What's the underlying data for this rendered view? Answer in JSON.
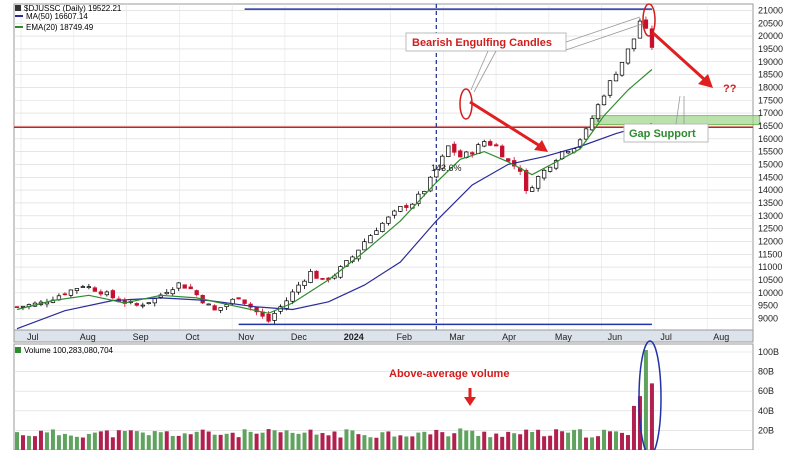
{
  "chart_data": [
    {
      "type": "candlestick",
      "symbol_label": "$DJUSSC (Daily) 19522.21",
      "legend": [
        {
          "text": "MA(50) 16607.14",
          "color": "#2b2b9a"
        },
        {
          "text": "EMA(20) 18749.49",
          "color": "#2e8b2e"
        }
      ],
      "x_labels": [
        "Jul",
        "Aug",
        "Sep",
        "Oct",
        "Nov",
        "Dec",
        "2024",
        "Feb",
        "Mar",
        "Apr",
        "May",
        "Jun",
        "Jul",
        "Aug"
      ],
      "y_ticks": [
        9000,
        9500,
        10000,
        10500,
        11000,
        11500,
        12000,
        12500,
        13000,
        13500,
        14000,
        14500,
        15000,
        15500,
        16000,
        16500,
        17000,
        17500,
        18000,
        18500,
        19000,
        19500,
        20000,
        20500,
        21000
      ],
      "ylim": [
        8550,
        21250
      ],
      "price_path": [
        [
          0,
          9450
        ],
        [
          4,
          9600
        ],
        [
          8,
          10000
        ],
        [
          11,
          10300
        ],
        [
          14,
          10050
        ],
        [
          17,
          9700
        ],
        [
          20,
          9500
        ],
        [
          23,
          9750
        ],
        [
          25,
          10100
        ],
        [
          27,
          10350
        ],
        [
          29,
          10150
        ],
        [
          31,
          9700
        ],
        [
          33,
          9300
        ],
        [
          35,
          9550
        ],
        [
          37,
          9850
        ],
        [
          39,
          9450
        ],
        [
          41,
          9050
        ],
        [
          42,
          8900
        ],
        [
          43,
          9200
        ],
        [
          45,
          9700
        ],
        [
          47,
          10300
        ],
        [
          49,
          10800
        ],
        [
          51,
          10450
        ],
        [
          53,
          10700
        ],
        [
          54,
          10950
        ],
        [
          56,
          11400
        ],
        [
          58,
          12000
        ],
        [
          60,
          12500
        ],
        [
          62,
          12900
        ],
        [
          64,
          13300
        ],
        [
          66,
          13500
        ],
        [
          68,
          14000
        ],
        [
          70,
          14800
        ],
        [
          72,
          15700
        ],
        [
          74,
          15300
        ],
        [
          76,
          15500
        ],
        [
          78,
          15900
        ],
        [
          80,
          15700
        ],
        [
          82,
          15100
        ],
        [
          84,
          14800
        ],
        [
          85,
          13900
        ],
        [
          87,
          14500
        ],
        [
          89,
          15000
        ],
        [
          91,
          15500
        ],
        [
          93,
          15700
        ],
        [
          95,
          16300
        ],
        [
          97,
          17300
        ],
        [
          99,
          18200
        ],
        [
          101,
          19000
        ],
        [
          103,
          19900
        ],
        [
          104,
          20600
        ],
        [
          105,
          20200
        ],
        [
          106,
          19600
        ]
      ],
      "ma50": [
        [
          0,
          8600
        ],
        [
          8,
          9300
        ],
        [
          16,
          9700
        ],
        [
          24,
          9800
        ],
        [
          32,
          9700
        ],
        [
          40,
          9450
        ],
        [
          46,
          9350
        ],
        [
          52,
          9650
        ],
        [
          58,
          10300
        ],
        [
          64,
          11200
        ],
        [
          70,
          12800
        ],
        [
          76,
          14200
        ],
        [
          82,
          15000
        ],
        [
          88,
          15300
        ],
        [
          94,
          15700
        ],
        [
          100,
          16200
        ],
        [
          106,
          16600
        ]
      ],
      "ema20": [
        [
          0,
          9350
        ],
        [
          6,
          9700
        ],
        [
          12,
          9900
        ],
        [
          18,
          9600
        ],
        [
          24,
          9900
        ],
        [
          30,
          9800
        ],
        [
          36,
          9500
        ],
        [
          42,
          9200
        ],
        [
          46,
          9600
        ],
        [
          52,
          10500
        ],
        [
          58,
          11600
        ],
        [
          64,
          12800
        ],
        [
          70,
          14300
        ],
        [
          74,
          15200
        ],
        [
          78,
          15500
        ],
        [
          82,
          15100
        ],
        [
          86,
          14600
        ],
        [
          90,
          15100
        ],
        [
          94,
          15600
        ],
        [
          98,
          16900
        ],
        [
          102,
          17900
        ],
        [
          106,
          18700
        ]
      ],
      "levels": [
        {
          "name": "high",
          "value": 21050,
          "x_from": 38,
          "x_to": 106
        },
        {
          "name": "low",
          "value": 8770,
          "x_from": 37,
          "x_to": 106
        },
        {
          "name": "breakout",
          "value": 16450,
          "x_from": 0,
          "x_to": 124
        }
      ],
      "gap_zone": {
        "from": 16550,
        "to": 16900,
        "x_from": 96,
        "x_to": 124
      },
      "marker_x": 70,
      "annotations": {
        "bearish": "Bearish Engulfing Candles",
        "gap": "Gap Support",
        "question": "??",
        "percent": "143.6%"
      }
    },
    {
      "type": "bar",
      "label": "Volume 100,283,080,704",
      "y_ticks": [
        "100B",
        "80B",
        "60B",
        "40B",
        "20B"
      ],
      "ylim": [
        0,
        100
      ],
      "baseline_volume_B": 16,
      "spike_volumes_B": [
        [
          103,
          45
        ],
        [
          104,
          55
        ],
        [
          105,
          102
        ],
        [
          106,
          68
        ]
      ],
      "annotation": "Above-average volume",
      "arrow_bar": 74
    }
  ]
}
